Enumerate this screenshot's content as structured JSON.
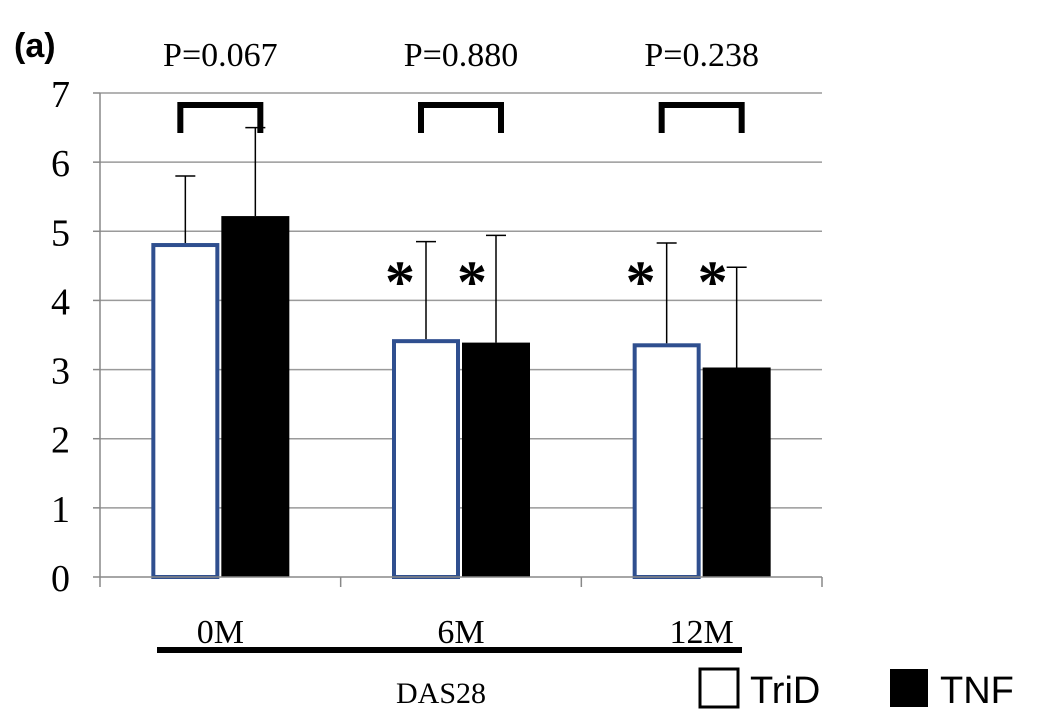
{
  "chart_data": {
    "type": "bar",
    "panel_label": "(a)",
    "categories": [
      "0M",
      "6M",
      "12M"
    ],
    "xlabel": "DAS28",
    "ylim": [
      0,
      7
    ],
    "yticks": [
      "0",
      "1",
      "2",
      "3",
      "4",
      "5",
      "6",
      "7"
    ],
    "grid": true,
    "legend_position": "bottom-right",
    "series": [
      {
        "name": "TriD",
        "fill": "#ffffff",
        "stroke": "#2f4f8f",
        "values": [
          4.83,
          3.44,
          3.38
        ],
        "error_upper": [
          5.8,
          4.85,
          4.83
        ]
      },
      {
        "name": "TNF",
        "fill": "#000000",
        "stroke": "#000000",
        "values": [
          5.22,
          3.39,
          3.03
        ],
        "error_upper": [
          6.5,
          4.94,
          4.48
        ]
      }
    ],
    "p_values": [
      "P=0.067",
      "P=0.880",
      "P=0.238"
    ],
    "significance_markers": [
      {
        "category": "6M",
        "series": "TriD",
        "label": "*"
      },
      {
        "category": "6M",
        "series": "TNF",
        "label": "*"
      },
      {
        "category": "12M",
        "series": "TriD",
        "label": "*"
      },
      {
        "category": "12M",
        "series": "TNF",
        "label": "*"
      }
    ]
  }
}
